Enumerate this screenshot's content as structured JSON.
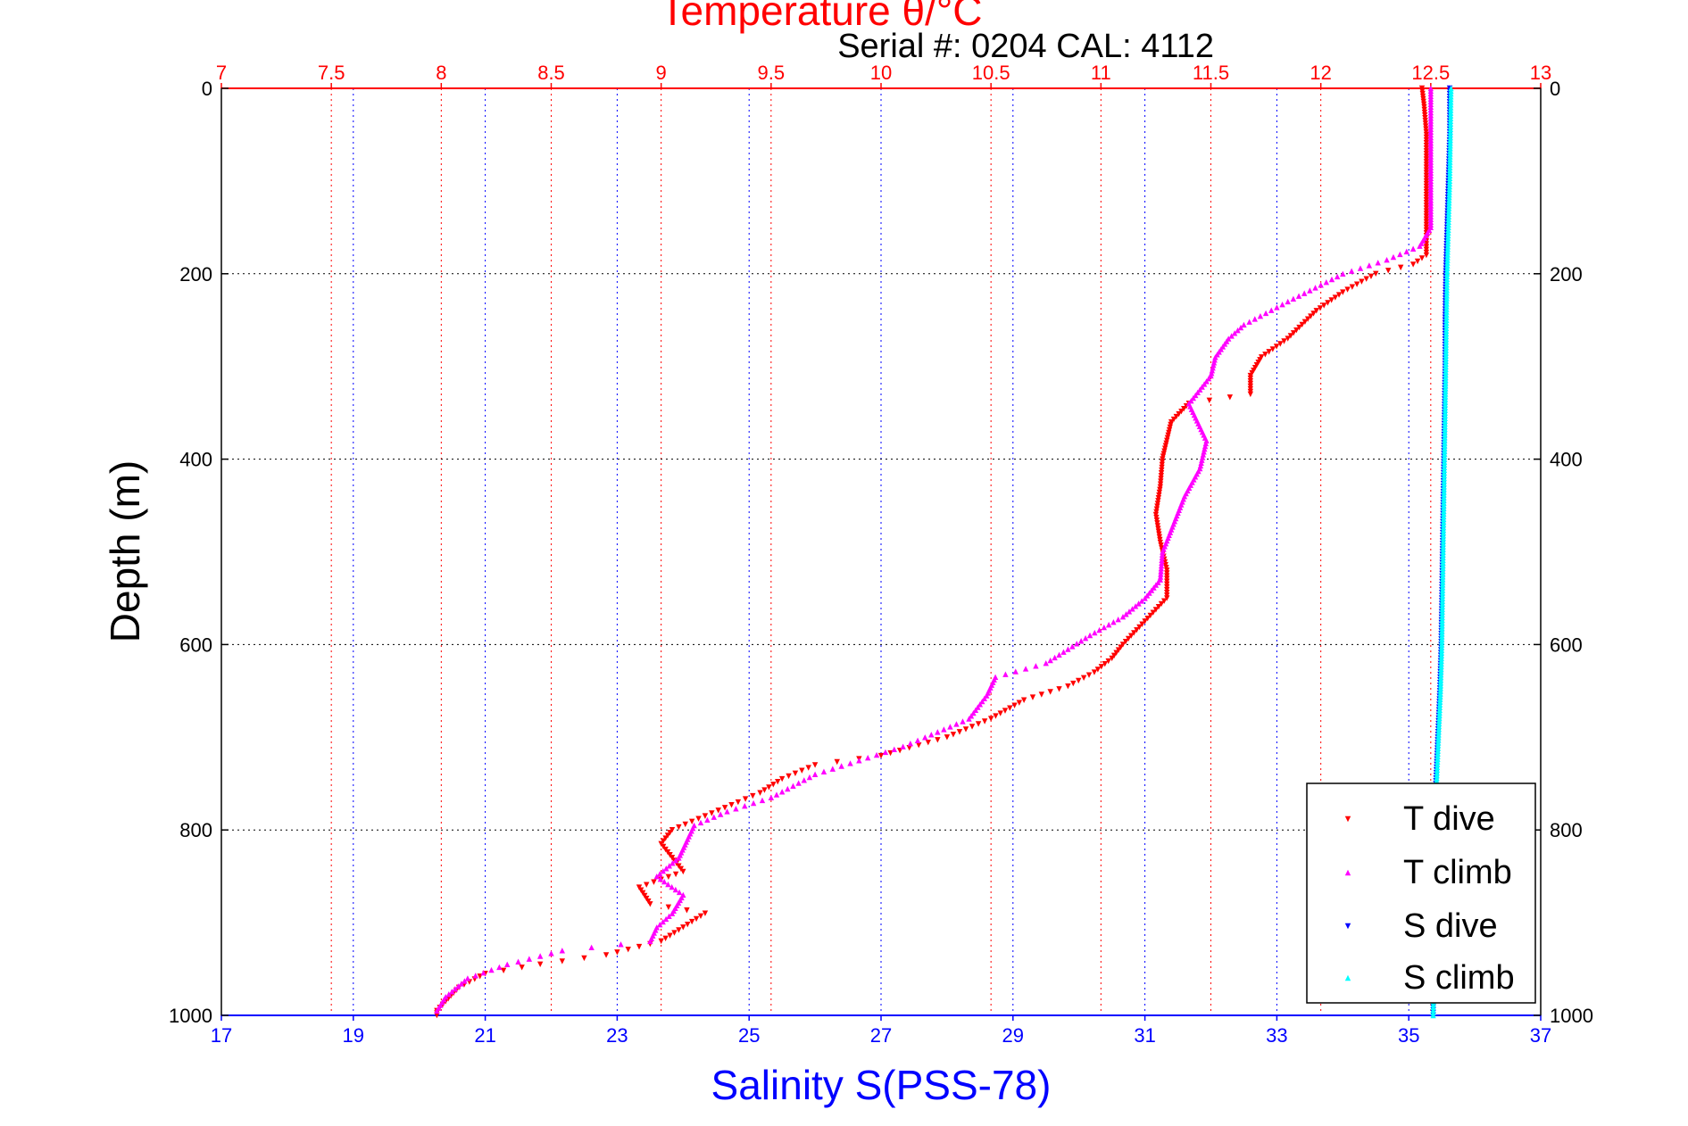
{
  "header": {
    "title": "Temperature θ/°C",
    "serial": "Serial #: 0204  CAL: 4112"
  },
  "colors": {
    "temperature_axis": "#ff0000",
    "salinity_axis": "#0000ff",
    "t_dive": "#ff0000",
    "t_climb": "#ff00ff",
    "s_dive": "#0000ff",
    "s_climb": "#00ffff"
  },
  "chart_data": {
    "type": "scatter",
    "title": "Temperature θ/°C",
    "ylabel": "Depth (m)",
    "x2label": "Salinity S(PSS-78)",
    "ylim": [
      0,
      1000
    ],
    "y_reversed": true,
    "temperature_xlim": [
      7,
      13
    ],
    "salinity_xlim": [
      17,
      37
    ],
    "temperature_ticks": [
      "7",
      "7.5",
      "8",
      "8.5",
      "9",
      "9.5",
      "10",
      "10.5",
      "11",
      "11.5",
      "12",
      "12.5",
      "13"
    ],
    "salinity_ticks": [
      "17",
      "19",
      "21",
      "23",
      "25",
      "27",
      "29",
      "31",
      "33",
      "35",
      "37"
    ],
    "depth_ticks": [
      "0",
      "200",
      "400",
      "600",
      "800",
      "1000"
    ],
    "grid": true,
    "legend": {
      "placement": "bottom-right",
      "entries": [
        "T dive",
        "T climb",
        "S dive",
        "S climb"
      ]
    },
    "series": [
      {
        "name": "T dive",
        "axis": "temperature",
        "marker": "triangle-down",
        "points": [
          [
            12.46,
            0
          ],
          [
            12.47,
            20
          ],
          [
            12.48,
            50
          ],
          [
            12.48,
            100
          ],
          [
            12.48,
            150
          ],
          [
            12.48,
            180
          ],
          [
            12.42,
            190
          ],
          [
            12.25,
            200
          ],
          [
            12.1,
            220
          ],
          [
            11.98,
            240
          ],
          [
            11.85,
            270
          ],
          [
            11.73,
            290
          ],
          [
            11.68,
            310
          ],
          [
            11.68,
            330
          ],
          [
            11.4,
            340
          ],
          [
            11.32,
            360
          ],
          [
            11.3,
            380
          ],
          [
            11.28,
            400
          ],
          [
            11.27,
            430
          ],
          [
            11.25,
            460
          ],
          [
            11.27,
            490
          ],
          [
            11.3,
            520
          ],
          [
            11.3,
            550
          ],
          [
            11.2,
            575
          ],
          [
            11.1,
            600
          ],
          [
            11.05,
            615
          ],
          [
            10.97,
            630
          ],
          [
            10.85,
            645
          ],
          [
            10.65,
            660
          ],
          [
            10.5,
            680
          ],
          [
            10.3,
            700
          ],
          [
            10.0,
            720
          ],
          [
            9.7,
            730
          ],
          [
            9.55,
            745
          ],
          [
            9.45,
            760
          ],
          [
            9.35,
            770
          ],
          [
            9.2,
            785
          ],
          [
            9.05,
            800
          ],
          [
            9.0,
            815
          ],
          [
            9.05,
            830
          ],
          [
            9.1,
            845
          ],
          [
            8.9,
            862
          ],
          [
            8.95,
            880
          ],
          [
            9.2,
            890
          ],
          [
            9.1,
            905
          ],
          [
            9.0,
            920
          ],
          [
            8.75,
            935
          ],
          [
            8.45,
            945
          ],
          [
            8.2,
            955
          ],
          [
            8.08,
            970
          ],
          [
            8.02,
            985
          ],
          [
            7.98,
            995
          ],
          [
            7.98,
            1000
          ]
        ]
      },
      {
        "name": "T climb",
        "axis": "temperature",
        "marker": "triangle-up",
        "points": [
          [
            12.5,
            0
          ],
          [
            12.5,
            20
          ],
          [
            12.5,
            50
          ],
          [
            12.5,
            100
          ],
          [
            12.5,
            150
          ],
          [
            12.45,
            170
          ],
          [
            12.3,
            185
          ],
          [
            12.1,
            200
          ],
          [
            11.85,
            230
          ],
          [
            11.65,
            255
          ],
          [
            11.58,
            270
          ],
          [
            11.52,
            290
          ],
          [
            11.5,
            310
          ],
          [
            11.4,
            340
          ],
          [
            11.48,
            380
          ],
          [
            11.45,
            410
          ],
          [
            11.38,
            440
          ],
          [
            11.33,
            470
          ],
          [
            11.28,
            500
          ],
          [
            11.27,
            530
          ],
          [
            11.2,
            550
          ],
          [
            11.1,
            570
          ],
          [
            10.95,
            590
          ],
          [
            10.85,
            605
          ],
          [
            10.75,
            620
          ],
          [
            10.52,
            635
          ],
          [
            10.48,
            655
          ],
          [
            10.4,
            680
          ],
          [
            10.2,
            700
          ],
          [
            10.1,
            710
          ],
          [
            9.9,
            725
          ],
          [
            9.7,
            740
          ],
          [
            9.5,
            765
          ],
          [
            9.3,
            780
          ],
          [
            9.15,
            795
          ],
          [
            9.12,
            810
          ],
          [
            9.08,
            830
          ],
          [
            8.98,
            850
          ],
          [
            9.1,
            870
          ],
          [
            9.05,
            890
          ],
          [
            8.98,
            905
          ],
          [
            8.95,
            920
          ],
          [
            8.55,
            930
          ],
          [
            8.3,
            945
          ],
          [
            8.12,
            960
          ],
          [
            8.02,
            980
          ],
          [
            7.98,
            995
          ]
        ]
      },
      {
        "name": "S dive",
        "axis": "salinity",
        "marker": "triangle-down",
        "points": [
          [
            35.62,
            0
          ],
          [
            35.62,
            50
          ],
          [
            35.6,
            100
          ],
          [
            35.58,
            150
          ],
          [
            35.56,
            200
          ],
          [
            35.55,
            250
          ],
          [
            35.55,
            300
          ],
          [
            35.54,
            350
          ],
          [
            35.53,
            400
          ],
          [
            35.52,
            450
          ],
          [
            35.51,
            500
          ],
          [
            35.5,
            550
          ],
          [
            35.49,
            600
          ],
          [
            35.47,
            650
          ],
          [
            35.44,
            700
          ],
          [
            35.41,
            750
          ],
          [
            35.4,
            800
          ],
          [
            35.39,
            850
          ],
          [
            35.38,
            900
          ],
          [
            35.37,
            950
          ],
          [
            35.37,
            1000
          ]
        ]
      },
      {
        "name": "S climb",
        "axis": "salinity",
        "marker": "triangle-up",
        "points": [
          [
            35.64,
            0
          ],
          [
            35.63,
            50
          ],
          [
            35.62,
            100
          ],
          [
            35.6,
            150
          ],
          [
            35.58,
            200
          ],
          [
            35.57,
            250
          ],
          [
            35.56,
            300
          ],
          [
            35.55,
            350
          ],
          [
            35.54,
            400
          ],
          [
            35.53,
            450
          ],
          [
            35.52,
            500
          ],
          [
            35.51,
            550
          ],
          [
            35.5,
            600
          ],
          [
            35.48,
            650
          ],
          [
            35.45,
            700
          ],
          [
            35.42,
            750
          ],
          [
            35.41,
            800
          ],
          [
            35.4,
            850
          ],
          [
            35.39,
            900
          ],
          [
            35.38,
            950
          ],
          [
            35.37,
            1000
          ]
        ]
      }
    ]
  }
}
